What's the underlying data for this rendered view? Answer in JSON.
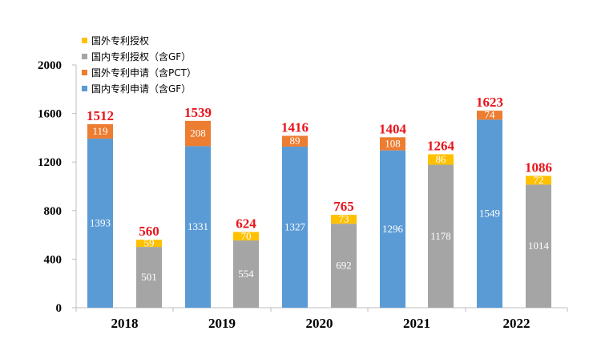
{
  "chart_data": {
    "type": "bar",
    "stacked": true,
    "ylim": [
      0,
      2000
    ],
    "yticks": [
      0,
      400,
      800,
      1200,
      1600,
      2000
    ],
    "years": [
      "2018",
      "2019",
      "2020",
      "2021",
      "2022"
    ],
    "legend_position": "top-left",
    "legend": [
      {
        "name": "国外专利授权",
        "color": "#ffc000"
      },
      {
        "name": "国内专利授权（含GF）",
        "color": "#a5a5a5"
      },
      {
        "name": "国外专利申请（含PCT）",
        "color": "#ed7d31"
      },
      {
        "name": "国内专利申请（含GF）",
        "color": "#5b9bd5"
      }
    ],
    "groups": [
      {
        "year": "2018",
        "application": {
          "domestic": 1393,
          "foreign": 119,
          "total": 1512
        },
        "grant": {
          "domestic": 501,
          "foreign": 59,
          "total": 560
        }
      },
      {
        "year": "2019",
        "application": {
          "domestic": 1331,
          "foreign": 208,
          "total": 1539
        },
        "grant": {
          "domestic": 554,
          "foreign": 70,
          "total": 624
        }
      },
      {
        "year": "2020",
        "application": {
          "domestic": 1327,
          "foreign": 89,
          "total": 1416
        },
        "grant": {
          "domestic": 692,
          "foreign": 73,
          "total": 765
        }
      },
      {
        "year": "2021",
        "application": {
          "domestic": 1296,
          "foreign": 108,
          "total": 1404
        },
        "grant": {
          "domestic": 1178,
          "foreign": 86,
          "total": 1264
        }
      },
      {
        "year": "2022",
        "application": {
          "domestic": 1549,
          "foreign": 74,
          "total": 1623
        },
        "grant": {
          "domestic": 1014,
          "foreign": 72,
          "total": 1086
        }
      }
    ]
  }
}
